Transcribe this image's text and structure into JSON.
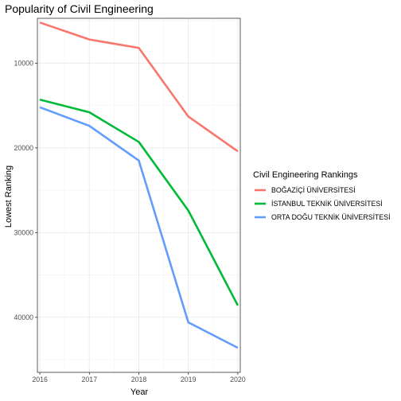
{
  "chart_data": {
    "type": "line",
    "title": "Popularity of Civil Engineering",
    "xlabel": "Year",
    "ylabel": "Lowest Ranking",
    "x": [
      2016,
      2017,
      2018,
      2019,
      2020
    ],
    "x_tick_labels": [
      "2016",
      "2017",
      "2018",
      "2019",
      "2020"
    ],
    "y_ticks": [
      10000,
      20000,
      30000,
      40000
    ],
    "y_tick_labels": [
      "10000",
      "20000",
      "30000",
      "40000"
    ],
    "y_reversed": true,
    "xlim": [
      2015.95,
      2020.05
    ],
    "ylim": [
      4700,
      46500
    ],
    "grid": true,
    "legend": {
      "title": "Civil Engineering Rankings",
      "placement": "right"
    },
    "series": [
      {
        "name": "BOĞAZİÇİ ÜNİVERSİTESİ",
        "color": "#F8766D",
        "values": [
          5200,
          7200,
          8200,
          16300,
          20400
        ]
      },
      {
        "name": "İSTANBUL TEKNİK ÜNİVERSİTESİ",
        "color": "#00BA38",
        "values": [
          14300,
          15800,
          19300,
          27400,
          38600
        ]
      },
      {
        "name": "ORTA DOĞU TEKNİK ÜNİVERSİTESİ",
        "color": "#619CFF",
        "values": [
          15200,
          17400,
          21500,
          40600,
          43600
        ]
      }
    ]
  }
}
